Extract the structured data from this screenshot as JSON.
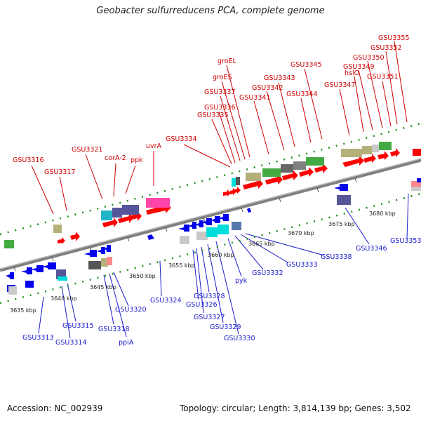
{
  "title": "Geobacter sulfurreducens PCA, complete genome",
  "footer": {
    "accession_label": "Accession:",
    "accession": "NC_002939",
    "stats": "Topology: circular; Length: 3,814,139 bp; Genes: 3,502"
  },
  "colors": {
    "top_label": "#cc0000",
    "bottom_label": "#1a1acc",
    "forward_gene": "#ff0000",
    "reverse_gene": "#0000ee",
    "backbone": "#808080"
  },
  "scale_labels": [
    "3635 kbp",
    "3640 kbp",
    "3645 kbp",
    "3650 kbp",
    "3655 kbp",
    "3660 kbp",
    "3665 kbp",
    "3670 kbp",
    "3675 kbp",
    "3680 kbp"
  ],
  "top_labels": [
    "GSU3316",
    "GSU3317",
    "GSU3321",
    "corA-2",
    "ppk",
    "uvrA",
    "GSU3334",
    "GSU3335",
    "GSU3336",
    "GSU3337",
    "groES",
    "groEL",
    "GSU3341",
    "GSU3342",
    "GSU3343",
    "GSU3344",
    "GSU3345",
    "GSU3347",
    "hslO",
    "GSU3349",
    "GSU3350",
    "GSU3351",
    "GSU3352",
    "GSU3355"
  ],
  "bottom_labels": [
    "GSU3313",
    "GSU3314",
    "GSU3315",
    "GSU3318",
    "ppiA",
    "GSU3320",
    "GSU3324",
    "GSU3326",
    "GSU3327",
    "GSU3328",
    "GSU3329",
    "GSU3330",
    "pyk",
    "GSU3332",
    "GSU3333",
    "GSU3338",
    "GSU3346",
    "GSU3353"
  ]
}
